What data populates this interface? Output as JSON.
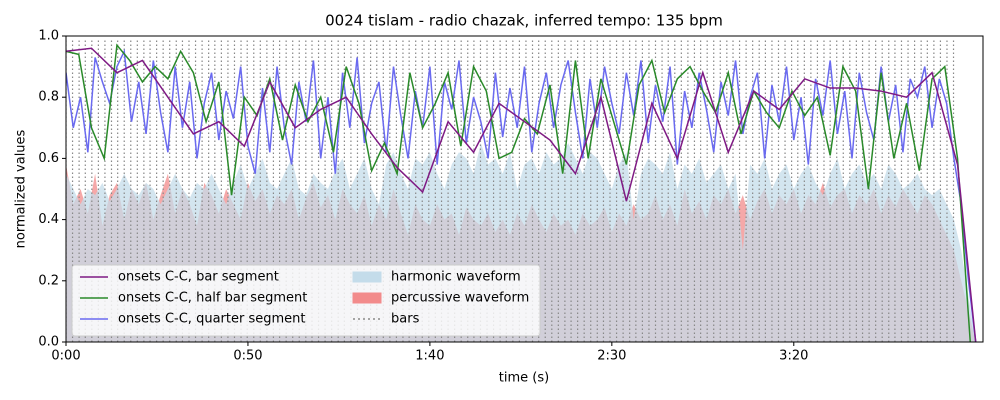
{
  "chart_data": {
    "type": "line",
    "title": "0024 tislam - radio chazak, inferred tempo: 135 bpm",
    "xlabel": "time (s)",
    "ylabel": "normalized values",
    "xlim": [
      0,
      252
    ],
    "ylim": [
      0,
      1
    ],
    "xticks": [
      {
        "value": 0,
        "label": "0:00"
      },
      {
        "value": 50,
        "label": "0:50"
      },
      {
        "value": 100,
        "label": "1:40"
      },
      {
        "value": 150,
        "label": "2:30"
      },
      {
        "value": 200,
        "label": "3:20"
      }
    ],
    "yticks": [
      {
        "value": 0,
        "label": "0.0"
      },
      {
        "value": 0.2,
        "label": "0.2"
      },
      {
        "value": 0.4,
        "label": "0.4"
      },
      {
        "value": 0.6,
        "label": "0.6"
      },
      {
        "value": 0.8,
        "label": "0.8"
      },
      {
        "value": 1,
        "label": "1.0"
      }
    ],
    "legend": "lower left",
    "x": [
      0,
      2,
      4,
      6,
      8,
      10,
      12,
      14,
      16,
      18,
      20,
      22,
      24,
      26,
      28,
      30,
      32,
      34,
      36,
      38,
      40,
      42,
      44,
      46,
      48,
      50,
      52,
      54,
      56,
      58,
      60,
      62,
      64,
      66,
      68,
      70,
      72,
      74,
      76,
      78,
      80,
      82,
      84,
      86,
      88,
      90,
      92,
      94,
      96,
      98,
      100,
      102,
      104,
      106,
      108,
      110,
      112,
      114,
      116,
      118,
      120,
      122,
      124,
      126,
      128,
      130,
      132,
      134,
      136,
      138,
      140,
      142,
      144,
      146,
      148,
      150,
      152,
      154,
      156,
      158,
      160,
      162,
      164,
      166,
      168,
      170,
      172,
      174,
      176,
      178,
      180,
      182,
      184,
      186,
      188,
      190,
      192,
      194,
      196,
      198,
      200,
      202,
      204,
      206,
      208,
      210,
      212,
      214,
      216,
      218,
      220,
      222,
      224,
      226,
      228,
      230,
      232,
      234,
      236,
      238,
      240,
      242,
      244,
      246,
      248,
      250
    ],
    "series": [
      {
        "name": "onsets C-C, bar segment",
        "kind": "line",
        "color": "#7f1a84",
        "x": [
          0,
          7,
          14,
          21,
          28,
          35,
          42,
          49,
          56,
          63,
          70,
          77,
          84,
          91,
          98,
          105,
          112,
          119,
          126,
          133,
          140,
          147,
          154,
          161,
          168,
          175,
          182,
          189,
          196,
          203,
          210,
          217,
          224,
          231,
          238,
          245,
          250
        ],
        "values": [
          0.95,
          0.96,
          0.88,
          0.92,
          0.8,
          0.68,
          0.72,
          0.64,
          0.85,
          0.7,
          0.76,
          0.8,
          0.68,
          0.57,
          0.49,
          0.72,
          0.62,
          0.78,
          0.72,
          0.66,
          0.55,
          0.8,
          0.46,
          0.78,
          0.6,
          0.88,
          0.62,
          0.82,
          0.76,
          0.86,
          0.83,
          0.83,
          0.82,
          0.8,
          0.88,
          0.58,
          0
        ]
      },
      {
        "name": "onsets C-C, half bar segment",
        "kind": "line",
        "color": "#2a8a2a",
        "x": [
          0,
          3.5,
          7,
          10.5,
          14,
          17.5,
          21,
          24.5,
          28,
          31.5,
          35,
          38.5,
          42,
          45.5,
          49,
          52.5,
          56,
          59.5,
          63,
          66.5,
          70,
          73.5,
          77,
          80.5,
          84,
          87.5,
          91,
          94.5,
          98,
          101.5,
          105,
          108.5,
          112,
          115.5,
          119,
          122.5,
          126,
          129.5,
          133,
          136.5,
          140,
          143.5,
          147,
          150.5,
          154,
          157.5,
          161,
          164.5,
          168,
          171.5,
          175,
          178.5,
          182,
          185.5,
          189,
          192.5,
          196,
          199.5,
          203,
          206.5,
          210,
          213.5,
          217,
          220.5,
          224,
          227.5,
          231,
          234.5,
          238,
          241.5,
          245,
          248.5
        ],
        "values": [
          0.95,
          0.94,
          0.7,
          0.6,
          0.97,
          0.92,
          0.85,
          0.9,
          0.86,
          0.95,
          0.88,
          0.72,
          0.85,
          0.48,
          0.8,
          0.74,
          0.86,
          0.66,
          0.84,
          0.72,
          0.8,
          0.62,
          0.9,
          0.78,
          0.56,
          0.65,
          0.55,
          0.88,
          0.7,
          0.78,
          0.88,
          0.64,
          0.9,
          0.82,
          0.6,
          0.62,
          0.73,
          0.68,
          0.84,
          0.55,
          0.92,
          0.6,
          0.86,
          0.72,
          0.58,
          0.84,
          0.92,
          0.75,
          0.86,
          0.9,
          0.82,
          0.75,
          0.88,
          0.68,
          0.82,
          0.75,
          0.7,
          0.82,
          0.74,
          0.8,
          0.61,
          0.9,
          0.82,
          0.5,
          0.88,
          0.6,
          0.78,
          0.56,
          0.86,
          0.9,
          0.6,
          0
        ]
      },
      {
        "name": "onsets C-C, quarter segment",
        "kind": "line",
        "color": "#6a6af0",
        "values": [
          0.88,
          0.7,
          0.8,
          0.62,
          0.93,
          0.85,
          0.78,
          0.9,
          0.95,
          0.72,
          0.85,
          0.68,
          0.92,
          0.75,
          0.62,
          0.9,
          0.7,
          0.85,
          0.6,
          0.78,
          0.88,
          0.66,
          0.82,
          0.73,
          0.9,
          0.64,
          0.55,
          0.83,
          0.62,
          0.9,
          0.7,
          0.58,
          0.85,
          0.72,
          0.92,
          0.6,
          0.8,
          0.55,
          0.88,
          0.7,
          0.93,
          0.65,
          0.78,
          0.85,
          0.62,
          0.9,
          0.74,
          0.6,
          0.82,
          0.7,
          0.9,
          0.58,
          0.85,
          0.76,
          0.92,
          0.65,
          0.8,
          0.72,
          0.6,
          0.88,
          0.67,
          0.83,
          0.7,
          0.9,
          0.62,
          0.78,
          0.88,
          0.7,
          0.84,
          0.92,
          0.75,
          0.6,
          0.86,
          0.7,
          0.9,
          0.78,
          0.68,
          0.88,
          0.74,
          0.92,
          0.65,
          0.84,
          0.72,
          0.9,
          0.58,
          0.82,
          0.7,
          0.88,
          0.76,
          0.62,
          0.85,
          0.74,
          0.92,
          0.68,
          0.8,
          0.88,
          0.6,
          0.84,
          0.72,
          0.9,
          0.66,
          0.8,
          0.58,
          0.86,
          0.74,
          0.92,
          0.68,
          0.82,
          0.6,
          0.88,
          0.75,
          0.66,
          0.9,
          0.72,
          0.84,
          0.62,
          0.86,
          0.8,
          0.9,
          0.7,
          0.86,
          0.78,
          0.6,
          0.45,
          0.2,
          0
        ]
      },
      {
        "name": "harmonic waveform",
        "kind": "area",
        "color": "#c4dcea",
        "values": [
          0.55,
          0.5,
          0.45,
          0.5,
          0.48,
          0.52,
          0.46,
          0.5,
          0.55,
          0.5,
          0.48,
          0.52,
          0.5,
          0.45,
          0.5,
          0.55,
          0.5,
          0.47,
          0.52,
          0.5,
          0.55,
          0.5,
          0.45,
          0.52,
          0.58,
          0.5,
          0.55,
          0.6,
          0.52,
          0.5,
          0.55,
          0.6,
          0.5,
          0.48,
          0.55,
          0.52,
          0.5,
          0.56,
          0.6,
          0.5,
          0.55,
          0.6,
          0.5,
          0.45,
          0.58,
          0.62,
          0.55,
          0.5,
          0.6,
          0.58,
          0.62,
          0.55,
          0.5,
          0.58,
          0.62,
          0.6,
          0.55,
          0.65,
          0.58,
          0.6,
          0.55,
          0.62,
          0.5,
          0.58,
          0.6,
          0.55,
          0.62,
          0.58,
          0.6,
          0.65,
          0.6,
          0.55,
          0.62,
          0.6,
          0.55,
          0.5,
          0.58,
          0.62,
          0.4,
          0.55,
          0.6,
          0.58,
          0.55,
          0.62,
          0.5,
          0.58,
          0.55,
          0.6,
          0.52,
          0.55,
          0.58,
          0.5,
          0.55,
          0.3,
          0.58,
          0.55,
          0.6,
          0.5,
          0.55,
          0.58,
          0.5,
          0.55,
          0.58,
          0.52,
          0.48,
          0.55,
          0.6,
          0.5,
          0.55,
          0.58,
          0.52,
          0.55,
          0.5,
          0.58,
          0.55,
          0.5,
          0.52,
          0.55,
          0.5,
          0.48,
          0.5,
          0.45,
          0.4,
          0.3,
          0.15,
          0
        ]
      },
      {
        "name": "percussive waveform",
        "kind": "area",
        "color": "#f28b8b",
        "values": [
          0.58,
          0.45,
          0.5,
          0.42,
          0.55,
          0.38,
          0.48,
          0.52,
          0.4,
          0.5,
          0.45,
          0.52,
          0.4,
          0.48,
          0.55,
          0.42,
          0.5,
          0.45,
          0.38,
          0.52,
          0.48,
          0.42,
          0.5,
          0.45,
          0.4,
          0.52,
          0.46,
          0.5,
          0.42,
          0.48,
          0.45,
          0.5,
          0.4,
          0.47,
          0.52,
          0.44,
          0.48,
          0.4,
          0.5,
          0.45,
          0.42,
          0.48,
          0.38,
          0.45,
          0.4,
          0.5,
          0.42,
          0.35,
          0.45,
          0.4,
          0.38,
          0.45,
          0.4,
          0.42,
          0.35,
          0.44,
          0.4,
          0.38,
          0.42,
          0.36,
          0.4,
          0.35,
          0.42,
          0.38,
          0.45,
          0.4,
          0.36,
          0.42,
          0.38,
          0.4,
          0.35,
          0.42,
          0.38,
          0.4,
          0.44,
          0.36,
          0.42,
          0.38,
          0.45,
          0.4,
          0.42,
          0.48,
          0.4,
          0.45,
          0.38,
          0.5,
          0.42,
          0.46,
          0.4,
          0.48,
          0.45,
          0.5,
          0.42,
          0.48,
          0.4,
          0.46,
          0.5,
          0.42,
          0.48,
          0.45,
          0.5,
          0.42,
          0.48,
          0.45,
          0.52,
          0.44,
          0.48,
          0.5,
          0.42,
          0.48,
          0.45,
          0.5,
          0.42,
          0.48,
          0.44,
          0.5,
          0.46,
          0.42,
          0.48,
          0.45,
          0.4,
          0.35,
          0.3,
          0.2,
          0.1,
          0
        ]
      },
      {
        "name": "bars",
        "kind": "vlines",
        "color": "#888888",
        "x": [
          0,
          1.8,
          3.6,
          5.3,
          7.1,
          8.9,
          10.7,
          12.5,
          14.2,
          16.0,
          17.8,
          19.6,
          21.4,
          23.1,
          24.9,
          26.7,
          28.5,
          30.3,
          32.0,
          33.8,
          35.6,
          37.4,
          39.2,
          40.9,
          42.7,
          44.5,
          46.3,
          48.1,
          49.8,
          51.6,
          53.4,
          55.2,
          57.0,
          58.7,
          60.5,
          62.3,
          64.1,
          65.9,
          67.6,
          69.4,
          71.2,
          73.0,
          74.8,
          76.5,
          78.3,
          80.1,
          81.9,
          83.7,
          85.4,
          87.2,
          89.0,
          90.8,
          92.6,
          94.3,
          96.1,
          97.9,
          99.7,
          101.5,
          103.2,
          105.0,
          106.8,
          108.6,
          110.4,
          112.1,
          113.9,
          115.7,
          117.5,
          119.3,
          121.0,
          122.8,
          124.6,
          126.4,
          128.2,
          129.9,
          131.7,
          133.5,
          135.3,
          137.1,
          138.8,
          140.6,
          142.4,
          144.2,
          146.0,
          147.7,
          149.5,
          151.3,
          153.1,
          154.9,
          156.6,
          158.4,
          160.2,
          162.0,
          163.8,
          165.5,
          167.3,
          169.1,
          170.9,
          172.7,
          174.4,
          176.2,
          178.0,
          179.8,
          181.6,
          183.3,
          185.1,
          186.9,
          188.7,
          190.5,
          192.2,
          194.0,
          195.8,
          197.6,
          199.4,
          201.1,
          202.9,
          204.7,
          206.5,
          208.3,
          210.0,
          211.8,
          213.6,
          215.4,
          217.2,
          218.9,
          220.7,
          222.5,
          224.3,
          226.1,
          227.8,
          229.6,
          231.4,
          233.2,
          235.0,
          236.7,
          238.5,
          240.3,
          242.1,
          243.9
        ]
      }
    ]
  }
}
